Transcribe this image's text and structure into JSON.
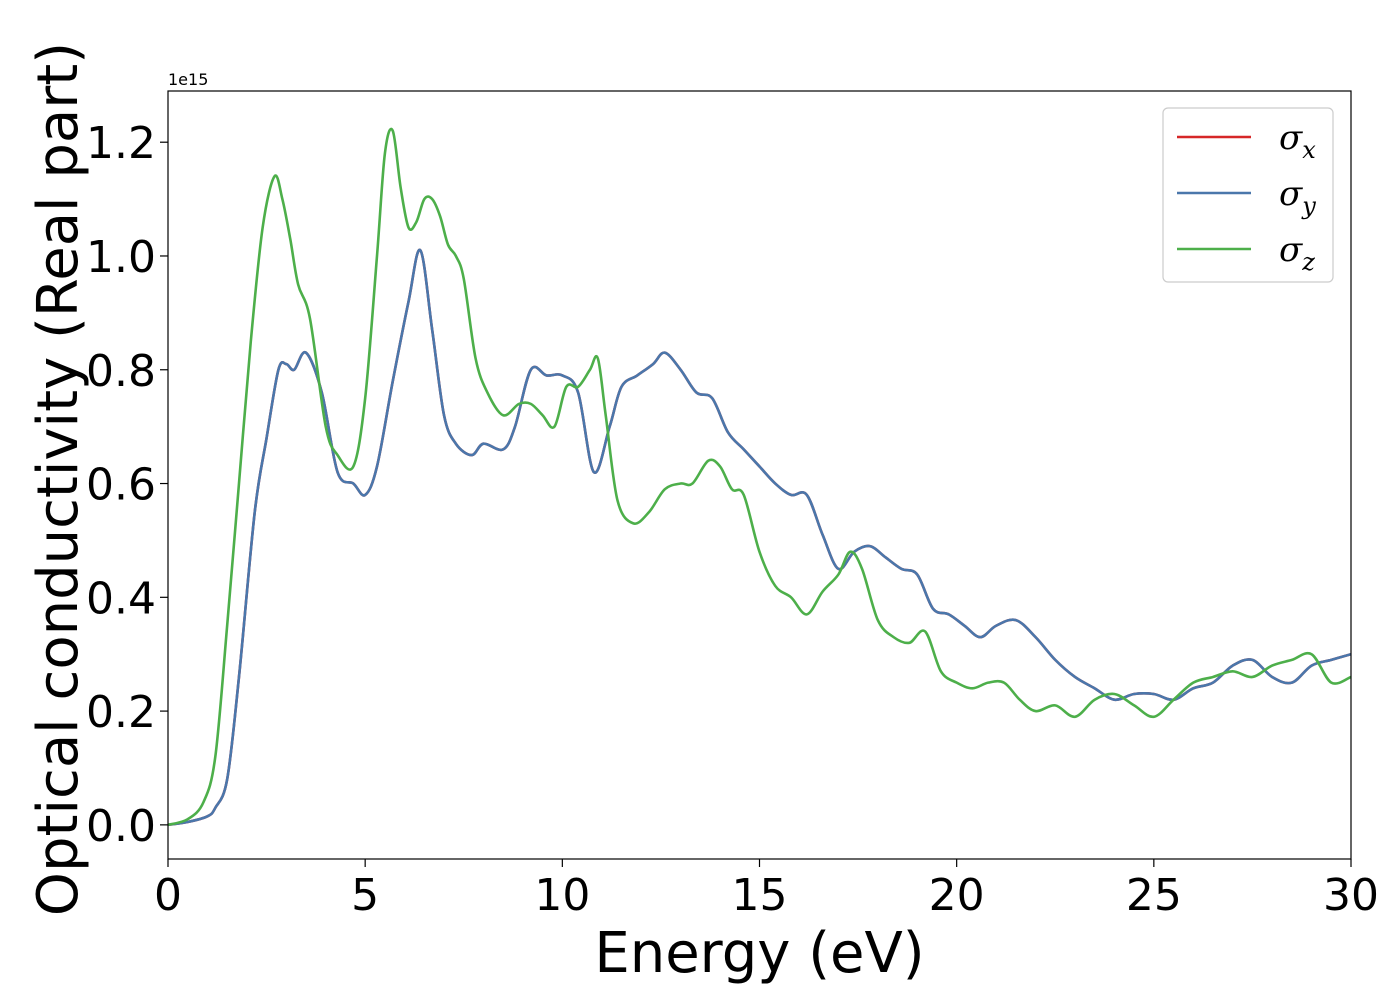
{
  "chart_data": {
    "type": "line",
    "title": "",
    "xlabel": "Energy (eV)",
    "ylabel": "Optical conductivity (Real part)",
    "y_offset_label": "1e15",
    "xlim": [
      0,
      30
    ],
    "ylim": [
      -0.06,
      1.29
    ],
    "x_ticks": [
      0,
      5,
      10,
      15,
      20,
      25,
      30
    ],
    "x_tick_labels": [
      "0",
      "5",
      "10",
      "15",
      "20",
      "25",
      "30"
    ],
    "y_ticks": [
      0.0,
      0.2,
      0.4,
      0.6,
      0.8,
      1.0,
      1.2
    ],
    "y_tick_labels": [
      "0.0",
      "0.2",
      "0.4",
      "0.6",
      "0.8",
      "1.0",
      "1.2"
    ],
    "grid": false,
    "legend_position": "top-right",
    "series": [
      {
        "name": "σx",
        "legend_base": "σ",
        "legend_sub": "x",
        "color": "#d62728",
        "x": [
          0,
          0.5,
          1.0,
          1.2,
          1.5,
          1.8,
          2.2,
          2.5,
          2.8,
          3.0,
          3.2,
          3.5,
          3.9,
          4.3,
          4.7,
          5.0,
          5.3,
          5.7,
          6.1,
          6.4,
          6.7,
          7.0,
          7.3,
          7.7,
          8.0,
          8.5,
          8.8,
          9.2,
          9.6,
          10.0,
          10.4,
          10.8,
          11.2,
          11.5,
          11.9,
          12.3,
          12.6,
          13.0,
          13.4,
          13.8,
          14.2,
          14.6,
          15.0,
          15.4,
          15.8,
          16.2,
          16.6,
          17.0,
          17.4,
          17.8,
          18.2,
          18.6,
          19.0,
          19.4,
          19.8,
          20.2,
          20.6,
          21.0,
          21.5,
          22.0,
          22.5,
          23.0,
          23.5,
          24.0,
          24.5,
          25.0,
          25.5,
          26.0,
          26.5,
          27.0,
          27.5,
          28.0,
          28.5,
          29.0,
          29.5,
          30.0
        ],
        "y": [
          0.0,
          0.005,
          0.015,
          0.03,
          0.08,
          0.26,
          0.55,
          0.68,
          0.8,
          0.81,
          0.8,
          0.83,
          0.76,
          0.62,
          0.6,
          0.58,
          0.63,
          0.78,
          0.92,
          1.01,
          0.87,
          0.72,
          0.67,
          0.65,
          0.67,
          0.66,
          0.7,
          0.8,
          0.79,
          0.79,
          0.76,
          0.62,
          0.7,
          0.77,
          0.79,
          0.81,
          0.83,
          0.8,
          0.76,
          0.75,
          0.69,
          0.66,
          0.63,
          0.6,
          0.58,
          0.58,
          0.51,
          0.45,
          0.48,
          0.49,
          0.47,
          0.45,
          0.44,
          0.38,
          0.37,
          0.35,
          0.33,
          0.35,
          0.36,
          0.33,
          0.29,
          0.26,
          0.24,
          0.22,
          0.23,
          0.23,
          0.22,
          0.24,
          0.25,
          0.28,
          0.29,
          0.26,
          0.25,
          0.28,
          0.29,
          0.3
        ]
      },
      {
        "name": "σy",
        "legend_base": "σ",
        "legend_sub": "y",
        "color": "#4a77ab",
        "x": [
          0,
          0.5,
          1.0,
          1.2,
          1.5,
          1.8,
          2.2,
          2.5,
          2.8,
          3.0,
          3.2,
          3.5,
          3.9,
          4.3,
          4.7,
          5.0,
          5.3,
          5.7,
          6.1,
          6.4,
          6.7,
          7.0,
          7.3,
          7.7,
          8.0,
          8.5,
          8.8,
          9.2,
          9.6,
          10.0,
          10.4,
          10.8,
          11.2,
          11.5,
          11.9,
          12.3,
          12.6,
          13.0,
          13.4,
          13.8,
          14.2,
          14.6,
          15.0,
          15.4,
          15.8,
          16.2,
          16.6,
          17.0,
          17.4,
          17.8,
          18.2,
          18.6,
          19.0,
          19.4,
          19.8,
          20.2,
          20.6,
          21.0,
          21.5,
          22.0,
          22.5,
          23.0,
          23.5,
          24.0,
          24.5,
          25.0,
          25.5,
          26.0,
          26.5,
          27.0,
          27.5,
          28.0,
          28.5,
          29.0,
          29.5,
          30.0
        ],
        "y": [
          0.0,
          0.005,
          0.015,
          0.03,
          0.08,
          0.26,
          0.55,
          0.68,
          0.8,
          0.81,
          0.8,
          0.83,
          0.76,
          0.62,
          0.6,
          0.58,
          0.63,
          0.78,
          0.92,
          1.01,
          0.87,
          0.72,
          0.67,
          0.65,
          0.67,
          0.66,
          0.7,
          0.8,
          0.79,
          0.79,
          0.76,
          0.62,
          0.7,
          0.77,
          0.79,
          0.81,
          0.83,
          0.8,
          0.76,
          0.75,
          0.69,
          0.66,
          0.63,
          0.6,
          0.58,
          0.58,
          0.51,
          0.45,
          0.48,
          0.49,
          0.47,
          0.45,
          0.44,
          0.38,
          0.37,
          0.35,
          0.33,
          0.35,
          0.36,
          0.33,
          0.29,
          0.26,
          0.24,
          0.22,
          0.23,
          0.23,
          0.22,
          0.24,
          0.25,
          0.28,
          0.29,
          0.26,
          0.25,
          0.28,
          0.29,
          0.3
        ]
      },
      {
        "name": "σz",
        "legend_base": "σ",
        "legend_sub": "z",
        "color": "#4daf4a",
        "x": [
          0,
          0.5,
          0.9,
          1.2,
          1.5,
          1.8,
          2.1,
          2.4,
          2.7,
          2.9,
          3.1,
          3.3,
          3.6,
          4.0,
          4.3,
          4.7,
          5.0,
          5.3,
          5.5,
          5.7,
          5.9,
          6.1,
          6.3,
          6.5,
          6.7,
          6.9,
          7.1,
          7.3,
          7.5,
          7.8,
          8.1,
          8.5,
          8.9,
          9.2,
          9.5,
          9.8,
          10.1,
          10.4,
          10.7,
          10.9,
          11.1,
          11.4,
          11.8,
          12.2,
          12.6,
          13.0,
          13.3,
          13.7,
          14.0,
          14.3,
          14.6,
          15.0,
          15.4,
          15.8,
          16.2,
          16.6,
          17.0,
          17.3,
          17.6,
          18.0,
          18.4,
          18.8,
          19.2,
          19.6,
          20.0,
          20.4,
          20.8,
          21.2,
          21.6,
          22.0,
          22.5,
          23.0,
          23.5,
          24.0,
          24.5,
          25.0,
          25.5,
          26.0,
          26.5,
          27.0,
          27.5,
          28.0,
          28.5,
          29.0,
          29.5,
          30.0
        ],
        "y": [
          0.0,
          0.01,
          0.04,
          0.12,
          0.35,
          0.6,
          0.85,
          1.05,
          1.14,
          1.1,
          1.03,
          0.95,
          0.89,
          0.7,
          0.65,
          0.63,
          0.75,
          1.0,
          1.18,
          1.22,
          1.12,
          1.05,
          1.06,
          1.1,
          1.1,
          1.07,
          1.02,
          1.0,
          0.96,
          0.82,
          0.76,
          0.72,
          0.74,
          0.74,
          0.72,
          0.7,
          0.77,
          0.77,
          0.8,
          0.82,
          0.72,
          0.57,
          0.53,
          0.55,
          0.59,
          0.6,
          0.6,
          0.64,
          0.63,
          0.59,
          0.58,
          0.48,
          0.42,
          0.4,
          0.37,
          0.41,
          0.44,
          0.48,
          0.45,
          0.36,
          0.33,
          0.32,
          0.34,
          0.27,
          0.25,
          0.24,
          0.25,
          0.25,
          0.22,
          0.2,
          0.21,
          0.19,
          0.22,
          0.23,
          0.21,
          0.19,
          0.22,
          0.25,
          0.26,
          0.27,
          0.26,
          0.28,
          0.29,
          0.3,
          0.25,
          0.26
        ]
      }
    ]
  }
}
